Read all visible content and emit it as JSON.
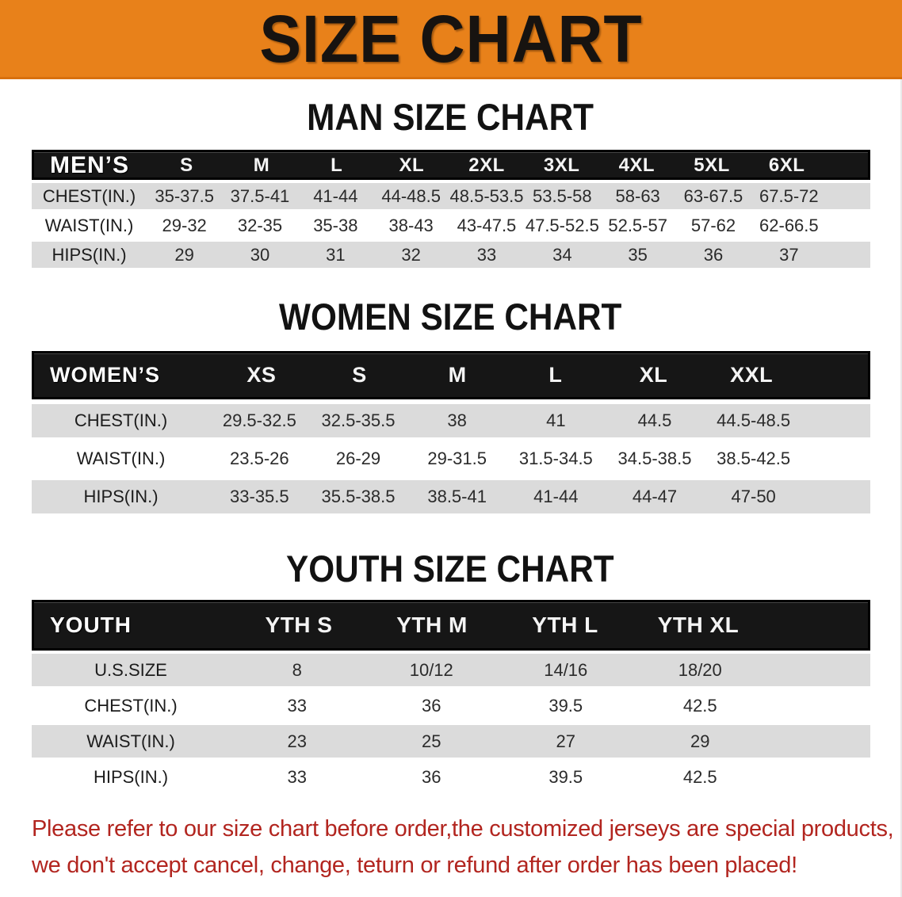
{
  "banner": {
    "title": "SIZE CHART",
    "bg_color": "#E8811A",
    "text_color": "#171310"
  },
  "sections": [
    {
      "heading": "MAN SIZE CHART",
      "table": {
        "header": [
          "MEN’S",
          "S",
          "M",
          "L",
          "XL",
          "2XL",
          "3XL",
          "4XL",
          "5XL",
          "6XL"
        ],
        "rows": [
          [
            "CHEST(IN.)",
            "35-37.5",
            "37.5-41",
            "41-44",
            "44-48.5",
            "48.5-53.5",
            "53.5-58",
            "58-63",
            "63-67.5",
            "67.5-72"
          ],
          [
            "WAIST(IN.)",
            "29-32",
            "32-35",
            "35-38",
            "38-43",
            "43-47.5",
            "47.5-52.5",
            "52.5-57",
            "57-62",
            "62-66.5"
          ],
          [
            "HIPS(IN.)",
            "29",
            "30",
            "31",
            "32",
            "33",
            "34",
            "35",
            "36",
            "37"
          ]
        ]
      }
    },
    {
      "heading": "WOMEN SIZE CHART",
      "table": {
        "header": [
          "WOMEN’S",
          "XS",
          "S",
          "M",
          "L",
          "XL",
          "XXL"
        ],
        "rows": [
          [
            "CHEST(IN.)",
            "29.5-32.5",
            "32.5-35.5",
            "38",
            "41",
            "44.5",
            "44.5-48.5"
          ],
          [
            "WAIST(IN.)",
            "23.5-26",
            "26-29",
            "29-31.5",
            "31.5-34.5",
            "34.5-38.5",
            "38.5-42.5"
          ],
          [
            "HIPS(IN.)",
            "33-35.5",
            "35.5-38.5",
            "38.5-41",
            "41-44",
            "44-47",
            "47-50"
          ]
        ]
      }
    },
    {
      "heading": "YOUTH SIZE CHART",
      "table": {
        "header": [
          "YOUTH",
          "YTH S",
          "YTH M",
          "YTH L",
          "YTH XL"
        ],
        "rows": [
          [
            "U.S.SIZE",
            "8",
            "10/12",
            "14/16",
            "18/20"
          ],
          [
            "CHEST(IN.)",
            "33",
            "36",
            "39.5",
            "42.5"
          ],
          [
            "WAIST(IN.)",
            "23",
            "25",
            "27",
            "29"
          ],
          [
            "HIPS(IN.)",
            "33",
            "36",
            "39.5",
            "42.5"
          ]
        ]
      }
    }
  ],
  "footer": {
    "line1": "Please refer to our size chart before order,the customized jerseys are special products,",
    "line2": "we don't accept cancel, change, teturn or refund after order has been placed!",
    "text_color": "#B2251F"
  }
}
